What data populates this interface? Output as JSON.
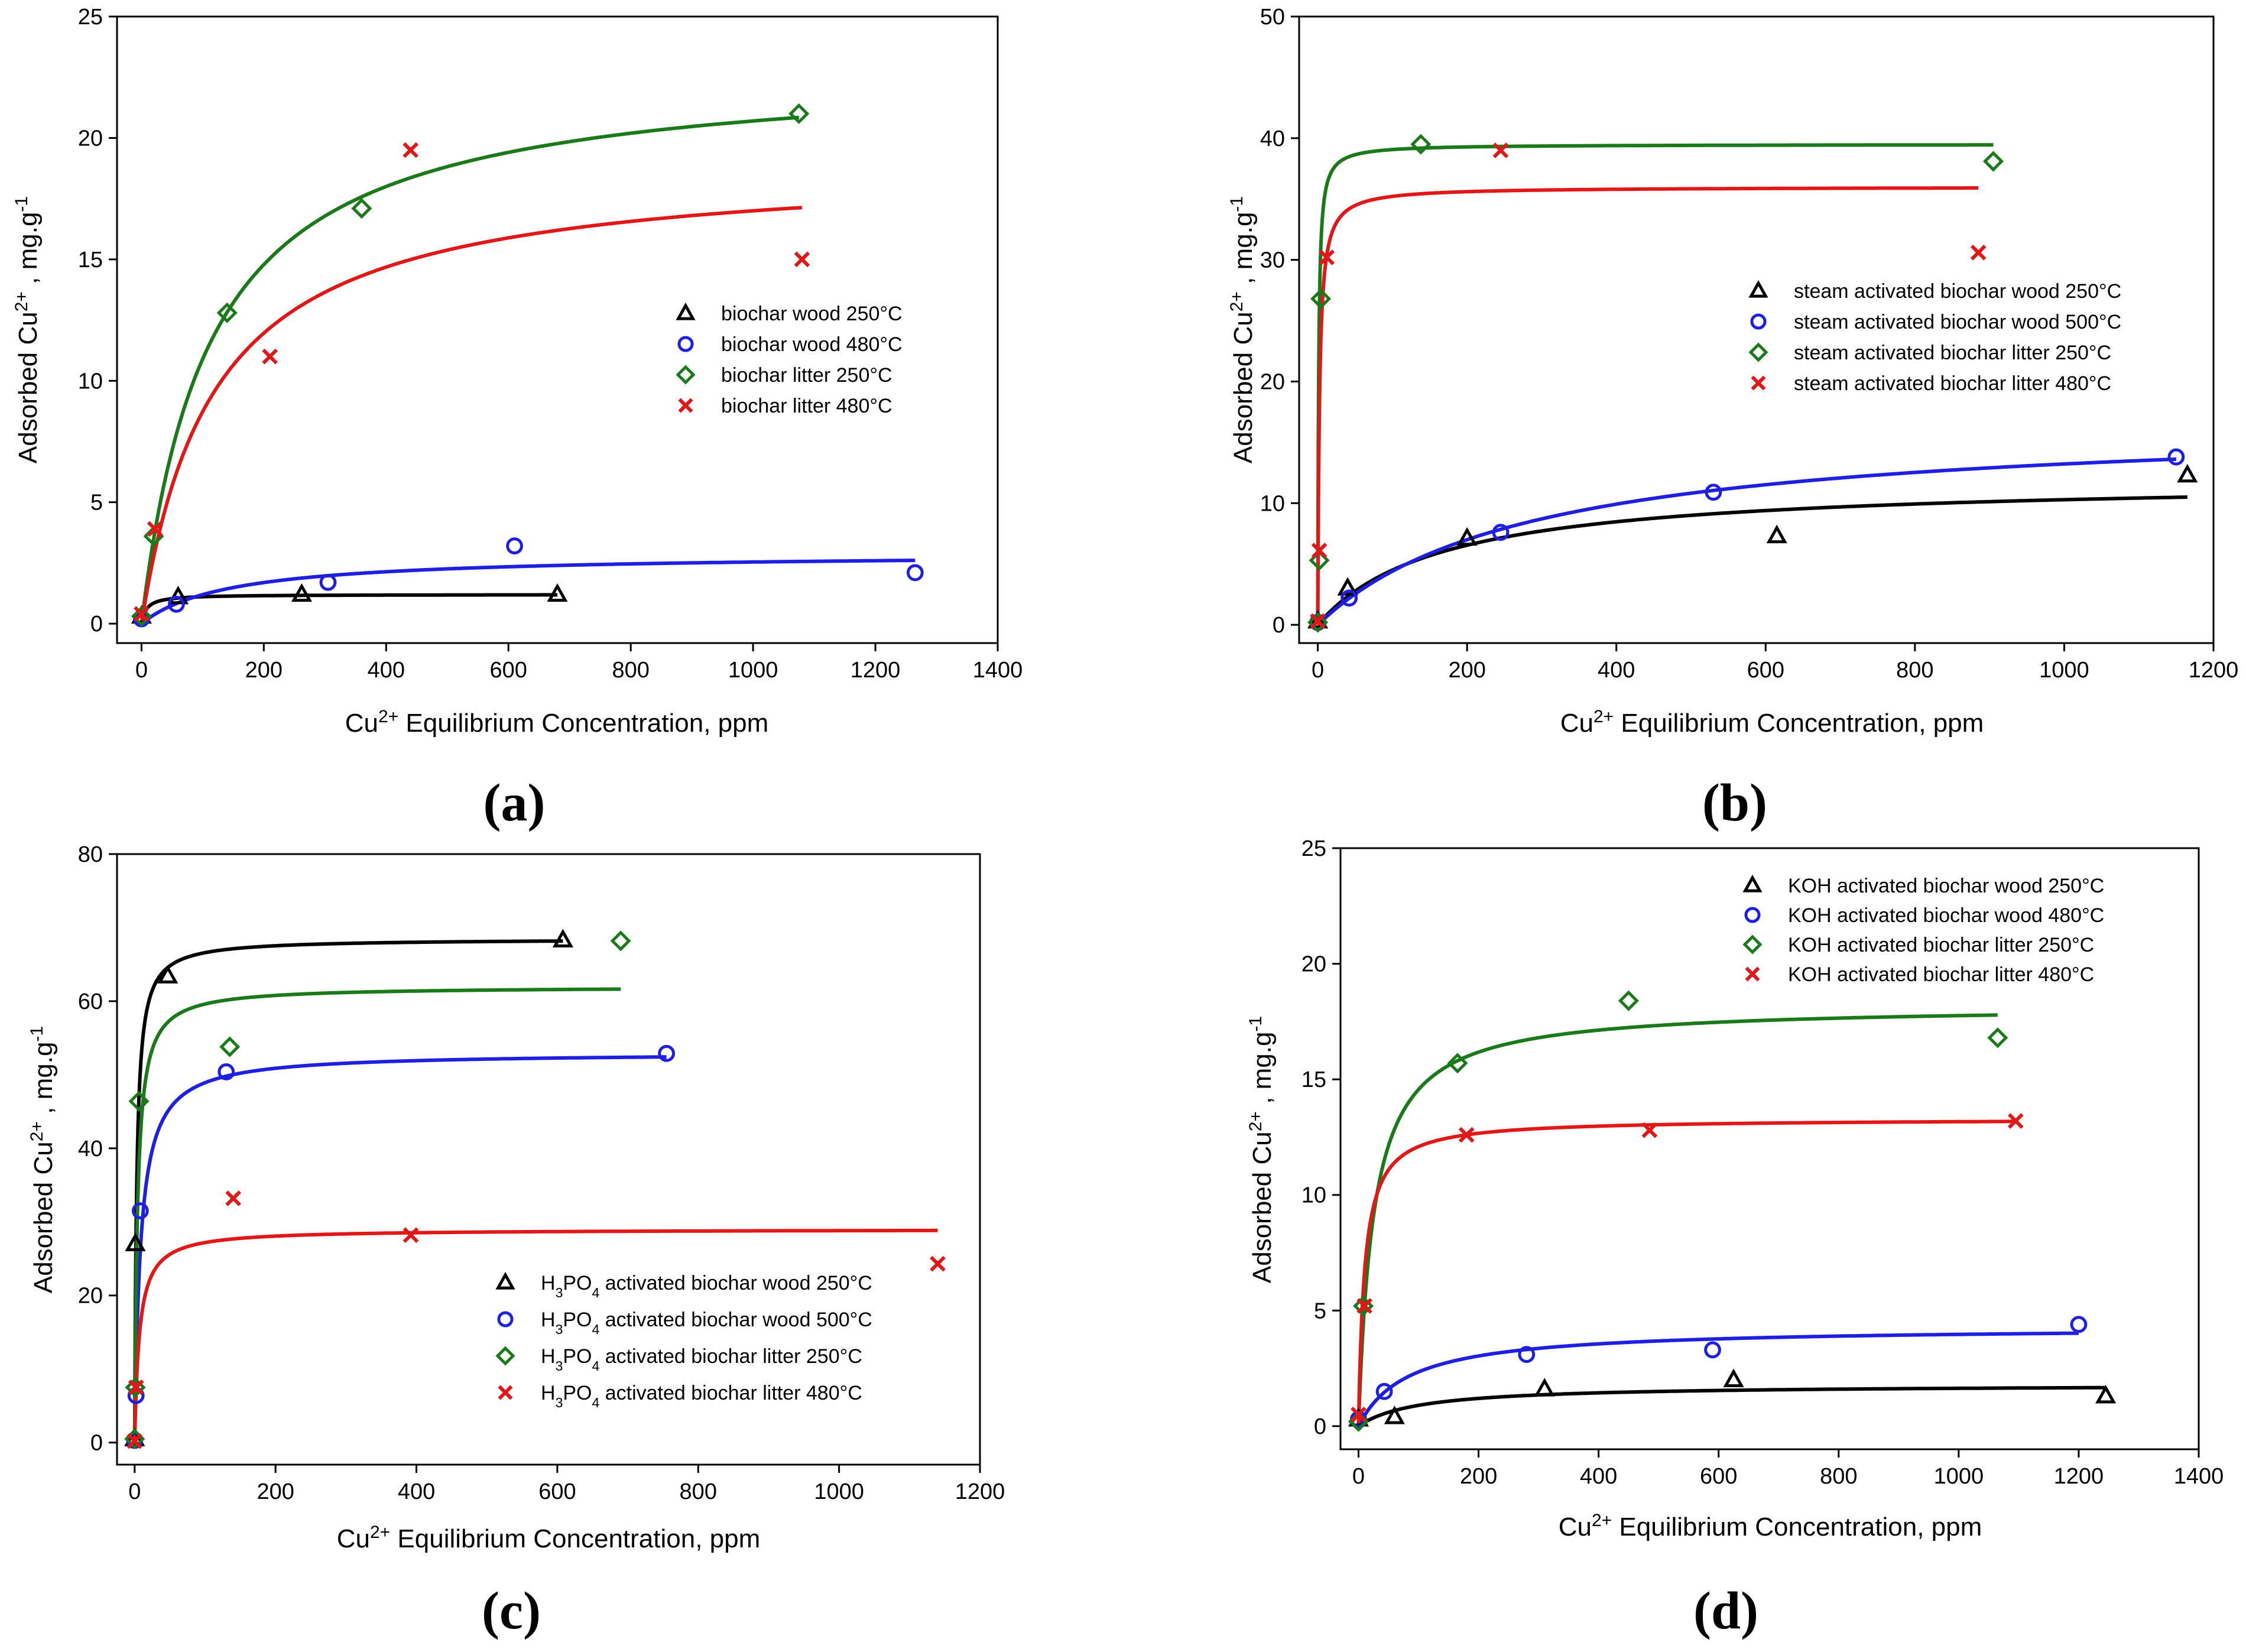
{
  "colors": {
    "black": "#000000",
    "blue": "#1f1fe0",
    "green": "#1a7a1a",
    "red": "#e01818"
  },
  "chart_data": [
    {
      "type": "scatter",
      "panel": "(a)",
      "xlabel": "Cu2+ Equilibrium Concentration, ppm",
      "ylabel": "Adsorbed Cu2+ , mg.g-1",
      "xlim": [
        -40,
        1400
      ],
      "ylim": [
        -0.8,
        25
      ],
      "xticks": [
        0,
        200,
        400,
        600,
        800,
        1000,
        1200,
        1400
      ],
      "yticks": [
        0,
        5,
        10,
        15,
        20,
        25
      ],
      "legend_position": "right-middle",
      "series": [
        {
          "name": "biochar wood 250°C",
          "color": "black",
          "marker": "triangle",
          "x": [
            0,
            60,
            262,
            680
          ],
          "y": [
            0.3,
            1.1,
            1.2,
            1.2
          ],
          "fit": {
            "qmax": 1.2,
            "K": 0.12,
            "xmax": 680
          }
        },
        {
          "name": "biochar wood 480°C",
          "color": "blue",
          "marker": "circle",
          "x": [
            0,
            57,
            305,
            610,
            1265
          ],
          "y": [
            0.2,
            0.8,
            1.7,
            3.2,
            2.1
          ],
          "fit": {
            "qmax": 2.9,
            "K": 0.007,
            "xmax": 1265
          }
        },
        {
          "name": "biochar litter 250°C",
          "color": "green",
          "marker": "diamond",
          "x": [
            0,
            20,
            140,
            360,
            1075
          ],
          "y": [
            0.3,
            3.6,
            12.8,
            17.1,
            21.0
          ],
          "fit": {
            "qmax": 23,
            "K": 0.009,
            "xmax": 1075
          }
        },
        {
          "name": "biochar litter 480°C",
          "color": "red",
          "marker": "cross",
          "x": [
            0,
            22,
            210,
            440,
            1080
          ],
          "y": [
            0.4,
            3.9,
            11.0,
            19.5,
            15.0
          ],
          "fit": {
            "qmax": 19,
            "K": 0.0085,
            "xmax": 1080
          }
        }
      ]
    },
    {
      "type": "scatter",
      "panel": "(b)",
      "xlabel": "Cu2+ Equilibrium Concentration, ppm",
      "ylabel": "Adsorbed Cu2+ , mg.g-1",
      "xlim": [
        -25,
        1200
      ],
      "ylim": [
        -1.5,
        50
      ],
      "xticks": [
        0,
        200,
        400,
        600,
        800,
        1000,
        1200
      ],
      "yticks": [
        0,
        10,
        20,
        30,
        40,
        50
      ],
      "legend_position": "right-middle",
      "series": [
        {
          "name": "steam activated biochar wood 250°C",
          "color": "black",
          "marker": "triangle",
          "x": [
            0,
            40,
            200,
            615,
            1165
          ],
          "y": [
            0.3,
            3.0,
            7.1,
            7.3,
            12.3
          ],
          "fit": {
            "qmax": 12,
            "K": 0.006,
            "xmax": 1165
          }
        },
        {
          "name": "steam activated biochar wood 500°C",
          "color": "blue",
          "marker": "circle",
          "x": [
            0,
            42,
            245,
            530,
            1150
          ],
          "y": [
            0.2,
            2.2,
            7.6,
            10.9,
            13.8
          ],
          "fit": {
            "qmax": 17,
            "K": 0.0035,
            "xmax": 1150
          }
        },
        {
          "name": "steam activated biochar litter 250°C",
          "color": "green",
          "marker": "diamond",
          "x": [
            0,
            2,
            4,
            138,
            905
          ],
          "y": [
            0.2,
            5.3,
            26.8,
            39.5,
            38.1
          ],
          "fit": {
            "qmax": 39.5,
            "K": 0.9,
            "xmax": 905
          }
        },
        {
          "name": "steam activated biochar litter 480°C",
          "color": "red",
          "marker": "cross",
          "x": [
            0,
            2,
            12,
            245,
            885
          ],
          "y": [
            0.3,
            6.1,
            30.2,
            39.0,
            30.6
          ],
          "fit": {
            "qmax": 36,
            "K": 0.45,
            "xmax": 885
          }
        }
      ]
    },
    {
      "type": "scatter",
      "panel": "(c)",
      "xlabel": "Cu2+ Equilibrium Concentration, ppm",
      "ylabel": "Adsorbed Cu2+ , mg.g-1",
      "xlim": [
        -25,
        1200
      ],
      "ylim": [
        -3,
        80
      ],
      "xticks": [
        0,
        200,
        400,
        600,
        800,
        1000,
        1200
      ],
      "yticks": [
        0,
        20,
        40,
        60,
        80
      ],
      "legend_position": "bottom-right",
      "series": [
        {
          "name": "H3PO4 activated biochar wood 250°C",
          "color": "black",
          "marker": "triangle",
          "x": [
            0,
            1,
            47,
            608
          ],
          "y": [
            0.5,
            27.0,
            63.4,
            68.3
          ],
          "fit": {
            "qmax": 68.5,
            "K": 0.35,
            "xmax": 608
          }
        },
        {
          "name": "H3PO4 activated biochar wood 500°C",
          "color": "blue",
          "marker": "circle",
          "x": [
            0,
            2,
            8,
            130,
            755
          ],
          "y": [
            0.3,
            6.4,
            31.5,
            50.4,
            52.9
          ],
          "fit": {
            "qmax": 53,
            "K": 0.12,
            "xmax": 755
          }
        },
        {
          "name": "H3PO4 activated biochar litter 250°C",
          "color": "green",
          "marker": "diamond",
          "x": [
            0,
            1,
            6,
            135,
            690
          ],
          "y": [
            0.5,
            7.5,
            46.4,
            53.8,
            68.2
          ],
          "fit": {
            "qmax": 62,
            "K": 0.25,
            "xmax": 690
          }
        },
        {
          "name": "H3PO4 activated biochar litter 480°C",
          "color": "red",
          "marker": "cross",
          "x": [
            0,
            2,
            140,
            392,
            1140
          ],
          "y": [
            0.2,
            7.5,
            33.2,
            28.2,
            24.3
          ],
          "fit": {
            "qmax": 29,
            "K": 0.15,
            "xmax": 1140
          }
        }
      ]
    },
    {
      "type": "scatter",
      "panel": "(d)",
      "xlabel": "Cu2+ Equilibrium Concentration, ppm",
      "ylabel": "Adsorbed Cu2+ , mg.g-1",
      "xlim": [
        -30,
        1400
      ],
      "ylim": [
        -1,
        25
      ],
      "xticks": [
        0,
        200,
        400,
        600,
        800,
        1000,
        1200,
        1400
      ],
      "yticks": [
        0,
        5,
        10,
        15,
        20,
        25
      ],
      "legend_position": "top-right",
      "series": [
        {
          "name": "KOH activated biochar wood 250°C",
          "color": "black",
          "marker": "triangle",
          "x": [
            0,
            60,
            310,
            625,
            1245
          ],
          "y": [
            0.3,
            0.4,
            1.6,
            2.0,
            1.3
          ],
          "fit": {
            "qmax": 1.8,
            "K": 0.01,
            "xmax": 1245
          }
        },
        {
          "name": "KOH activated biochar wood 480°C",
          "color": "blue",
          "marker": "circle",
          "x": [
            0,
            43,
            280,
            590,
            1200
          ],
          "y": [
            0.3,
            1.5,
            3.1,
            3.3,
            4.4
          ],
          "fit": {
            "qmax": 4.3,
            "K": 0.012,
            "xmax": 1200
          }
        },
        {
          "name": "KOH activated biochar litter 250°C",
          "color": "green",
          "marker": "diamond",
          "x": [
            0,
            8,
            165,
            450,
            1065
          ],
          "y": [
            0.2,
            5.2,
            15.7,
            18.4,
            16.8
          ],
          "fit": {
            "qmax": 18.2,
            "K": 0.04,
            "xmax": 1065
          }
        },
        {
          "name": "KOH activated biochar litter 480°C",
          "color": "red",
          "marker": "cross",
          "x": [
            0,
            10,
            180,
            485,
            1095
          ],
          "y": [
            0.5,
            5.2,
            12.6,
            12.8,
            13.2
          ],
          "fit": {
            "qmax": 13.3,
            "K": 0.1,
            "xmax": 1095
          }
        }
      ]
    }
  ]
}
